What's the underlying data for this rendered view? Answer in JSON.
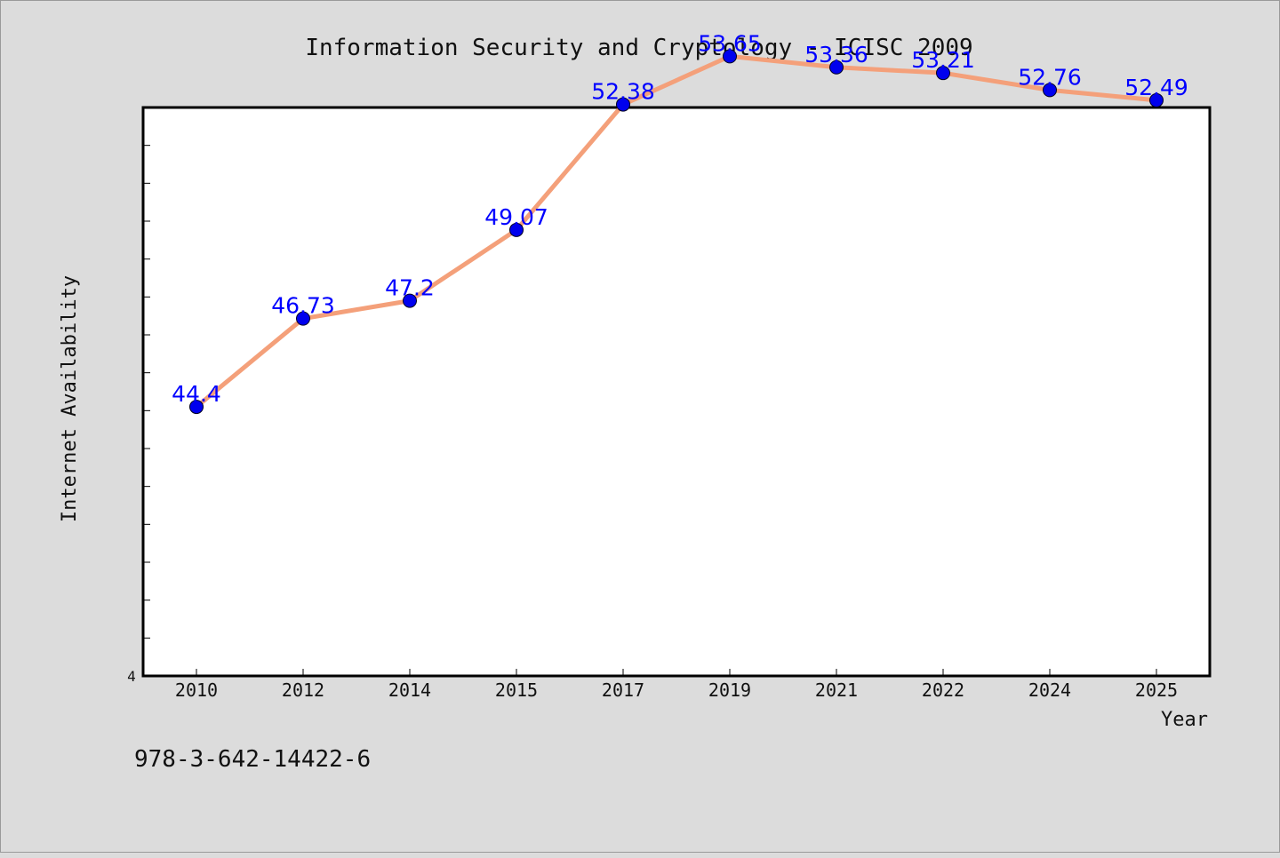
{
  "chart_data": {
    "type": "line",
    "title": "Information Security and Cryptology - ICISC 2009",
    "xlabel": "Year",
    "ylabel": "Internet Availability",
    "categories": [
      "2010",
      "2012",
      "2014",
      "2015",
      "2017",
      "2019",
      "2021",
      "2022",
      "2024",
      "2025"
    ],
    "values": [
      44.4,
      46.73,
      47.2,
      49.07,
      52.38,
      53.65,
      53.36,
      53.21,
      52.76,
      52.49
    ],
    "data_labels": [
      "44.4",
      "46.73",
      "47.2",
      "49.07",
      "52.38",
      "53.65",
      "53.36",
      "53.21",
      "52.76",
      "52.49"
    ],
    "y_min_label": "4",
    "ylim": [
      37.3,
      52.3
    ],
    "grid": false,
    "colors": {
      "line": "#f4a07a",
      "marker": "#0000ee",
      "label": "#0000ff",
      "plot_bg": "#ffffff",
      "page_bg": "#dcdcdc"
    }
  },
  "footer": {
    "isbn": "978-3-642-14422-6"
  }
}
